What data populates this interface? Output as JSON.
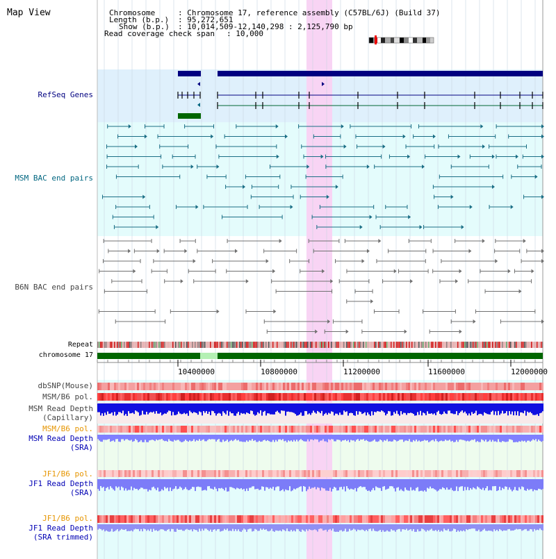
{
  "header": {
    "title": "Map View",
    "chromosome_label": "Chromosome",
    "chromosome_value": ": Chromosome 17, reference assembly (C57BL/6J) (Build 37)",
    "length_label": "Length (b.p.)",
    "length_value": ": 95,272,651",
    "show_label": "Show (b.p.)",
    "show_value": ": 10,014,509-12,140,298 : 2,125,790 bp",
    "coverage_label": "Read coverage check span",
    "coverage_value": ": 10,000"
  },
  "tracks": {
    "refseq": "RefSeq Genes",
    "msm_bac": "MSM BAC end pairs",
    "b6n_bac": "B6N BAC end pairs",
    "repeat": "Repeat",
    "chromosome": "chromosome 17",
    "dbsnp": "dbSNP(Mouse)",
    "msm_b6_pol_1": "MSM/B6 pol.",
    "msm_read_depth_cap_1": "MSM Read Depth",
    "msm_read_depth_cap_2": "(Capillary)",
    "msm_b6_pol_2": "MSM/B6 pol.",
    "msm_read_depth_sra_1": "MSM Read Depth",
    "msm_read_depth_sra_2": "(SRA)",
    "jf1_b6_pol_1": "JF1/B6 pol.",
    "jf1_read_depth_sra_1": "JF1 Read Depth",
    "jf1_read_depth_sra_2": "(SRA)",
    "jf1_b6_pol_2": "JF1/B6 pol.",
    "jf1_read_depth_trim_1": "JF1 Read Depth",
    "jf1_read_depth_trim_2": "(SRA trimmed)"
  },
  "axis": {
    "ticks": [
      "10400000",
      "10800000",
      "11200000",
      "11600000",
      "12000000"
    ]
  },
  "colors": {
    "refseq_bg": "#dff0fc",
    "msm_bg": "#e4fcfc",
    "highlight": "#f8d4f4",
    "navy": "#000080",
    "teal": "#006680",
    "chrom_green": "#006600",
    "snp_red": "#ff4040",
    "depth_blue": "#1010e0",
    "depth_light": "#8080ff"
  }
}
